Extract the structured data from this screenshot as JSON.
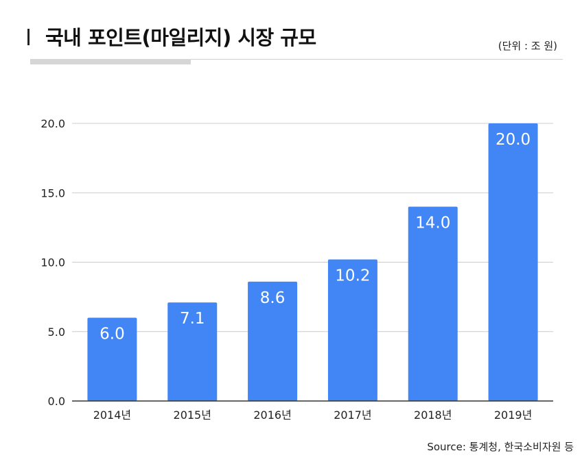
{
  "header": {
    "title": "국내 포인트(마일리지) 시장 규모",
    "unit": "(단위 : 조 원)"
  },
  "footer": {
    "source": "Source: 통계청, 한국소비자원 등"
  },
  "colors": {
    "bar": "#4285f4",
    "grid": "#cccccc",
    "axis": "#333333",
    "label": "#ffffff"
  },
  "chart_data": {
    "type": "bar",
    "categories": [
      "2014년",
      "2015년",
      "2016년",
      "2017년",
      "2018년",
      "2019년"
    ],
    "values": [
      6.0,
      7.1,
      8.6,
      10.2,
      14.0,
      20.0
    ],
    "value_labels": [
      "6.0",
      "7.1",
      "8.6",
      "10.2",
      "14.0",
      "20.0"
    ],
    "yticks": [
      "0.0",
      "5.0",
      "10.0",
      "15.0",
      "20.0"
    ],
    "ylim": [
      0,
      20
    ],
    "grid": true
  }
}
